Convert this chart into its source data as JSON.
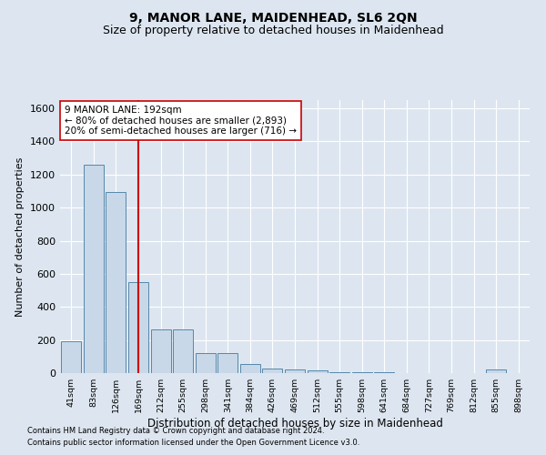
{
  "title": "9, MANOR LANE, MAIDENHEAD, SL6 2QN",
  "subtitle": "Size of property relative to detached houses in Maidenhead",
  "xlabel": "Distribution of detached houses by size in Maidenhead",
  "ylabel": "Number of detached properties",
  "categories": [
    "41sqm",
    "83sqm",
    "126sqm",
    "169sqm",
    "212sqm",
    "255sqm",
    "298sqm",
    "341sqm",
    "384sqm",
    "426sqm",
    "469sqm",
    "512sqm",
    "555sqm",
    "598sqm",
    "641sqm",
    "684sqm",
    "727sqm",
    "769sqm",
    "812sqm",
    "855sqm",
    "898sqm"
  ],
  "values": [
    195,
    1260,
    1095,
    550,
    265,
    265,
    120,
    120,
    55,
    30,
    20,
    15,
    5,
    5,
    5,
    2,
    2,
    2,
    0,
    20,
    0
  ],
  "bar_color": "#c8d8e8",
  "bar_edgecolor": "#5588aa",
  "vline_x": 3.0,
  "vline_color": "#cc0000",
  "annotation_text": "9 MANOR LANE: 192sqm\n← 80% of detached houses are smaller (2,893)\n20% of semi-detached houses are larger (716) →",
  "annotation_box_color": "#ffffff",
  "annotation_box_edgecolor": "#cc0000",
  "ylim": [
    0,
    1650
  ],
  "yticks": [
    0,
    200,
    400,
    600,
    800,
    1000,
    1200,
    1400,
    1600
  ],
  "title_fontsize": 10,
  "subtitle_fontsize": 9,
  "footer_line1": "Contains HM Land Registry data © Crown copyright and database right 2024.",
  "footer_line2": "Contains public sector information licensed under the Open Government Licence v3.0.",
  "background_color": "#dde6f0",
  "plot_background": "#dde6f0"
}
